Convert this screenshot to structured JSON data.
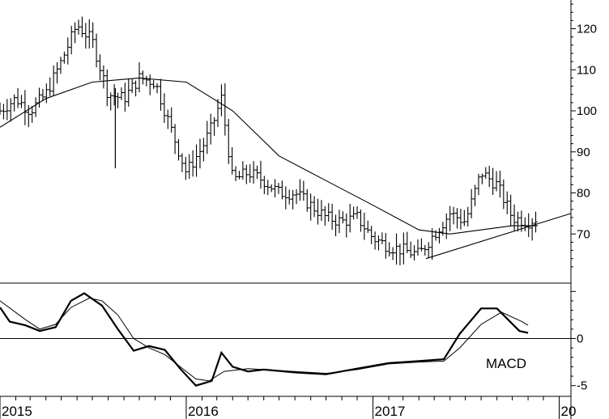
{
  "chart_data": [
    {
      "type": "bar",
      "style": "ohlc-weekly-bars",
      "ylim": [
        60,
        127
      ],
      "yticks": [
        70,
        80,
        90,
        100,
        110,
        120
      ],
      "x_range": [
        "2015-01-01",
        "2018-01-24"
      ],
      "xticks": [
        {
          "date": "2015-01-01",
          "label": "2015"
        },
        {
          "date": "2016-01-01",
          "label": "2016"
        },
        {
          "date": "2017-01-01",
          "label": "2017"
        },
        {
          "date": "2018-01-01",
          "label": "20"
        }
      ],
      "price_path": [
        [
          "2015-01-01",
          100
        ],
        [
          "2015-02-01",
          103
        ],
        [
          "2015-03-01",
          100
        ],
        [
          "2015-04-01",
          104
        ],
        [
          "2015-05-01",
          112
        ],
        [
          "2015-06-01",
          121
        ],
        [
          "2015-07-01",
          117
        ],
        [
          "2015-08-01",
          104
        ],
        [
          "2015-09-01",
          103
        ],
        [
          "2015-10-01",
          108
        ],
        [
          "2015-11-01",
          107
        ],
        [
          "2015-12-01",
          96
        ],
        [
          "2016-01-01",
          85
        ],
        [
          "2016-02-01",
          91
        ],
        [
          "2016-02-20",
          96
        ],
        [
          "2016-03-10",
          103
        ],
        [
          "2016-04-01",
          83
        ],
        [
          "2016-05-01",
          85
        ],
        [
          "2016-06-01",
          83
        ],
        [
          "2016-07-01",
          80
        ],
        [
          "2016-08-01",
          80
        ],
        [
          "2016-09-01",
          77
        ],
        [
          "2016-10-01",
          74
        ],
        [
          "2016-11-01",
          73
        ],
        [
          "2016-12-01",
          74
        ],
        [
          "2017-01-01",
          69
        ],
        [
          "2017-02-01",
          67
        ],
        [
          "2017-03-01",
          66
        ],
        [
          "2017-04-01",
          65
        ],
        [
          "2017-05-01",
          70
        ],
        [
          "2017-06-01",
          75
        ],
        [
          "2017-07-01",
          73
        ],
        [
          "2017-08-01",
          85
        ],
        [
          "2017-09-01",
          82
        ],
        [
          "2017-10-01",
          74
        ],
        [
          "2017-11-01",
          73
        ],
        [
          "2017-11-20",
          74
        ]
      ],
      "spikes": [
        {
          "date": "2015-08-15",
          "low": 86
        }
      ],
      "series": [
        {
          "name": "",
          "kind": "moving-average",
          "points": [
            [
              "2015-01-01",
              96
            ],
            [
              "2015-04-01",
              103
            ],
            [
              "2015-07-01",
              107
            ],
            [
              "2015-10-01",
              108
            ],
            [
              "2016-01-01",
              107
            ],
            [
              "2016-04-01",
              100
            ],
            [
              "2016-07-01",
              89
            ],
            [
              "2016-10-01",
              83
            ],
            [
              "2017-01-01",
              77
            ],
            [
              "2017-04-01",
              71
            ],
            [
              "2017-06-01",
              70
            ],
            [
              "2017-08-01",
              71
            ],
            [
              "2017-10-01",
              72
            ],
            [
              "2017-11-20",
              72
            ]
          ]
        },
        {
          "name": "",
          "kind": "trendline",
          "points": [
            [
              "2017-04-15",
              64
            ],
            [
              "2018-01-24",
              75
            ]
          ]
        }
      ]
    },
    {
      "type": "line",
      "annotation": "MACD",
      "ylim": [
        -5.8,
        5.8
      ],
      "yticks": [
        {
          "value": 0,
          "label": "0"
        },
        {
          "value": -5,
          "label": "-5"
        }
      ],
      "zero_line": true,
      "series": [
        {
          "name": "",
          "kind": "macd",
          "points": [
            [
              "2015-01-01",
              3.3
            ],
            [
              "2015-01-20",
              1.8
            ],
            [
              "2015-02-20",
              1.4
            ],
            [
              "2015-03-20",
              0.8
            ],
            [
              "2015-04-20",
              1.2
            ],
            [
              "2015-05-20",
              4.0
            ],
            [
              "2015-06-15",
              4.8
            ],
            [
              "2015-07-20",
              3.5
            ],
            [
              "2015-08-20",
              1.0
            ],
            [
              "2015-09-20",
              -1.3
            ],
            [
              "2015-10-20",
              -0.8
            ],
            [
              "2015-11-20",
              -1.2
            ],
            [
              "2015-12-20",
              -3.2
            ],
            [
              "2016-01-20",
              -5.0
            ],
            [
              "2016-02-20",
              -4.5
            ],
            [
              "2016-03-10",
              -1.5
            ],
            [
              "2016-04-01",
              -3.0
            ],
            [
              "2016-05-01",
              -3.5
            ],
            [
              "2016-06-01",
              -3.3
            ],
            [
              "2016-08-01",
              -3.6
            ],
            [
              "2016-10-01",
              -3.8
            ],
            [
              "2016-12-01",
              -3.2
            ],
            [
              "2017-02-01",
              -2.6
            ],
            [
              "2017-04-01",
              -2.4
            ],
            [
              "2017-05-20",
              -2.2
            ],
            [
              "2017-06-20",
              0.5
            ],
            [
              "2017-08-01",
              3.2
            ],
            [
              "2017-09-01",
              3.2
            ],
            [
              "2017-10-15",
              0.8
            ],
            [
              "2017-11-01",
              0.6
            ]
          ]
        },
        {
          "name": "",
          "kind": "signal",
          "points": [
            [
              "2015-01-01",
              4.0
            ],
            [
              "2015-02-20",
              2.0
            ],
            [
              "2015-03-20",
              1.0
            ],
            [
              "2015-04-20",
              1.5
            ],
            [
              "2015-05-20",
              3.3
            ],
            [
              "2015-06-25",
              4.3
            ],
            [
              "2015-07-20",
              4.0
            ],
            [
              "2015-08-20",
              2.5
            ],
            [
              "2015-09-20",
              0.0
            ],
            [
              "2015-10-20",
              -1.0
            ],
            [
              "2015-11-20",
              -1.7
            ],
            [
              "2015-12-20",
              -3.0
            ],
            [
              "2016-01-20",
              -4.3
            ],
            [
              "2016-02-15",
              -4.5
            ],
            [
              "2016-03-15",
              -3.5
            ],
            [
              "2016-05-01",
              -3.2
            ],
            [
              "2016-07-01",
              -3.4
            ],
            [
              "2016-10-01",
              -3.7
            ],
            [
              "2016-12-01",
              -3.3
            ],
            [
              "2017-02-01",
              -2.7
            ],
            [
              "2017-04-01",
              -2.5
            ],
            [
              "2017-05-20",
              -2.4
            ],
            [
              "2017-06-20",
              -1.0
            ],
            [
              "2017-08-01",
              1.5
            ],
            [
              "2017-09-10",
              2.8
            ],
            [
              "2017-10-20",
              1.8
            ],
            [
              "2017-11-01",
              1.4
            ]
          ]
        }
      ]
    }
  ]
}
